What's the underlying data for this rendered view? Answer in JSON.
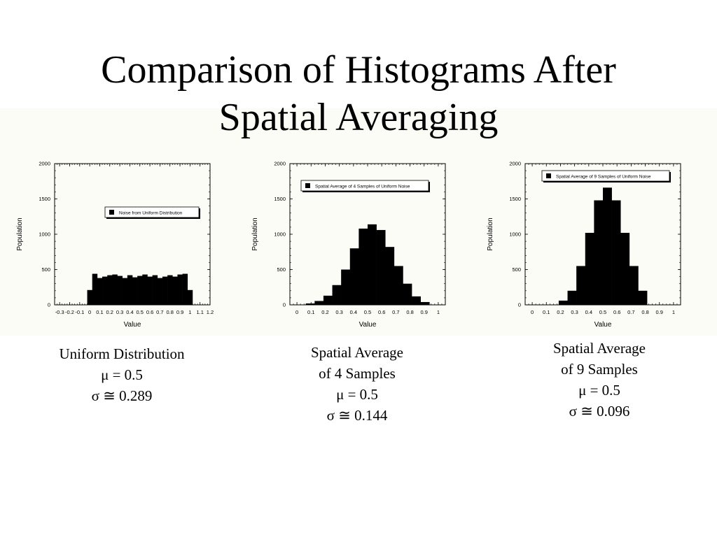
{
  "title": {
    "line1": "Comparison of Histograms After",
    "line2": "Spatial Averaging"
  },
  "chart_data": [
    {
      "type": "bar",
      "xlabel": "Value",
      "ylabel": "Population",
      "legend": "Noise from Uniform Distribution",
      "legend_position": "top-right",
      "xlim": [
        -0.35,
        1.2
      ],
      "ylim": [
        0,
        2000
      ],
      "x_ticks": [
        -0.3,
        -0.2,
        -0.1,
        0,
        0.1,
        0.2,
        0.3,
        0.4,
        0.5,
        0.6,
        0.7,
        0.8,
        0.9,
        1,
        1.1,
        1.2
      ],
      "x_tick_labels": [
        "-0.3",
        "-0.2",
        "-0.1",
        "0",
        "0.1",
        "0.2",
        "0.3",
        "0.4",
        "0.5",
        "0.6",
        "0.7",
        "0.8",
        "0.9",
        "1",
        "1.1",
        "1.2"
      ],
      "y_ticks": [
        0,
        500,
        1000,
        1500,
        2000
      ],
      "y_tick_labels": [
        "0",
        "500",
        "1000",
        "1500",
        "2000"
      ],
      "bin_width": 0.05,
      "bin_starts": [
        -0.025,
        0.025,
        0.075,
        0.125,
        0.175,
        0.225,
        0.275,
        0.325,
        0.375,
        0.425,
        0.475,
        0.525,
        0.575,
        0.625,
        0.675,
        0.725,
        0.775,
        0.825,
        0.875,
        0.925,
        0.975
      ],
      "values": [
        210,
        440,
        380,
        400,
        420,
        430,
        410,
        380,
        420,
        390,
        410,
        430,
        400,
        420,
        380,
        400,
        420,
        400,
        430,
        440,
        210
      ]
    },
    {
      "type": "bar",
      "xlabel": "Value",
      "ylabel": "Population",
      "legend": "Spatial Average of 4 Samples of Uniform Noise",
      "legend_position": "top",
      "xlim": [
        -0.05,
        1.05
      ],
      "ylim": [
        0,
        2000
      ],
      "x_ticks": [
        0,
        0.1,
        0.2,
        0.3,
        0.4,
        0.5,
        0.6,
        0.7,
        0.8,
        0.9,
        1
      ],
      "x_tick_labels": [
        "0",
        "0.1",
        "0.2",
        "0.3",
        "0.4",
        "0.5",
        "0.6",
        "0.7",
        "0.8",
        "0.9",
        "1"
      ],
      "y_ticks": [
        0,
        500,
        1000,
        1500,
        2000
      ],
      "y_tick_labels": [
        "0",
        "500",
        "1000",
        "1500",
        "2000"
      ],
      "bin_width": 0.0625,
      "bin_starts": [
        0.0625,
        0.125,
        0.1875,
        0.25,
        0.3125,
        0.375,
        0.4375,
        0.5,
        0.5625,
        0.625,
        0.6875,
        0.75,
        0.8125,
        0.875
      ],
      "values": [
        20,
        55,
        130,
        280,
        500,
        800,
        1080,
        1140,
        1060,
        820,
        550,
        300,
        120,
        40
      ]
    },
    {
      "type": "bar",
      "xlabel": "Value",
      "ylabel": "Population",
      "legend": "Spatial Average of 9 Samples of Uniform Noise",
      "legend_position": "top",
      "xlim": [
        -0.05,
        1.05
      ],
      "ylim": [
        0,
        2000
      ],
      "x_ticks": [
        0,
        0.1,
        0.2,
        0.3,
        0.4,
        0.5,
        0.6,
        0.7,
        0.8,
        0.9,
        1
      ],
      "x_tick_labels": [
        "0",
        "0.1",
        "0.2",
        "0.3",
        "0.4",
        "0.5",
        "0.6",
        "0.7",
        "0.8",
        "0.9",
        "1"
      ],
      "y_ticks": [
        0,
        500,
        1000,
        1500,
        2000
      ],
      "y_tick_labels": [
        "0",
        "500",
        "1000",
        "1500",
        "2000"
      ],
      "bin_width": 0.0625,
      "bin_starts": [
        0.1875,
        0.25,
        0.3125,
        0.375,
        0.4375,
        0.5,
        0.5625,
        0.625,
        0.6875,
        0.75
      ],
      "values": [
        60,
        200,
        550,
        1020,
        1480,
        1660,
        1480,
        1020,
        550,
        200
      ]
    }
  ],
  "captions": [
    [
      "Uniform Distribution",
      "μ = 0.5",
      "σ ≅ 0.289"
    ],
    [
      "Spatial Average",
      "of 4 Samples",
      "μ = 0.5",
      "σ ≅ 0.144"
    ],
    [
      "Spatial Average",
      "of 9 Samples",
      "μ = 0.5",
      "σ ≅ 0.096"
    ]
  ]
}
